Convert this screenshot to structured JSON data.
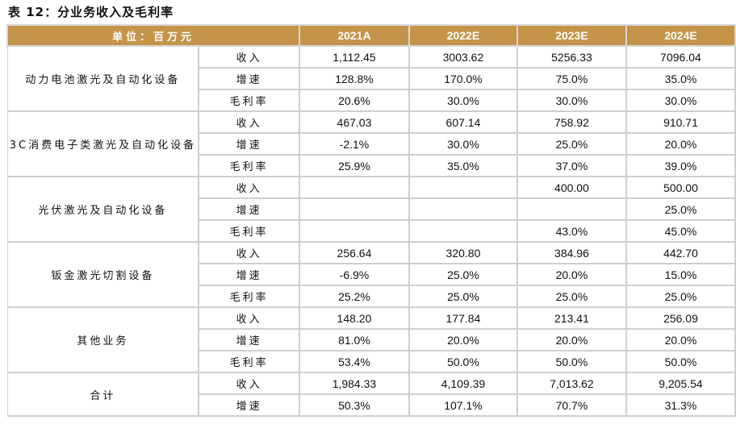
{
  "title": "表 12：分业务收入及毛利率",
  "header": {
    "unit": "单位：百万元",
    "years": [
      "2021A",
      "2022E",
      "2023E",
      "2024E"
    ]
  },
  "groups": [
    {
      "name": "动力电池激光及自动化设备",
      "rows": [
        {
          "metric": "收入",
          "values": [
            "1,112.45",
            "3003.62",
            "5256.33",
            "7096.04"
          ]
        },
        {
          "metric": "增速",
          "values": [
            "128.8%",
            "170.0%",
            "75.0%",
            "35.0%"
          ]
        },
        {
          "metric": "毛利率",
          "values": [
            "20.6%",
            "30.0%",
            "30.0%",
            "30.0%"
          ]
        }
      ]
    },
    {
      "name": "3C消费电子类激光及自动化设备",
      "rows": [
        {
          "metric": "收入",
          "values": [
            "467.03",
            "607.14",
            "758.92",
            "910.71"
          ]
        },
        {
          "metric": "增速",
          "values": [
            "-2.1%",
            "30.0%",
            "25.0%",
            "20.0%"
          ]
        },
        {
          "metric": "毛利率",
          "values": [
            "25.9%",
            "35.0%",
            "37.0%",
            "39.0%"
          ]
        }
      ]
    },
    {
      "name": "光伏激光及自动化设备",
      "rows": [
        {
          "metric": "收入",
          "values": [
            "",
            "",
            "400.00",
            "500.00"
          ]
        },
        {
          "metric": "增速",
          "values": [
            "",
            "",
            "",
            "25.0%"
          ]
        },
        {
          "metric": "毛利率",
          "values": [
            "",
            "",
            "43.0%",
            "45.0%"
          ]
        }
      ]
    },
    {
      "name": "钣金激光切割设备",
      "rows": [
        {
          "metric": "收入",
          "values": [
            "256.64",
            "320.80",
            "384.96",
            "442.70"
          ]
        },
        {
          "metric": "增速",
          "values": [
            "-6.9%",
            "25.0%",
            "20.0%",
            "15.0%"
          ]
        },
        {
          "metric": "毛利率",
          "values": [
            "25.2%",
            "25.0%",
            "25.0%",
            "25.0%"
          ]
        }
      ]
    },
    {
      "name": "其他业务",
      "rows": [
        {
          "metric": "收入",
          "values": [
            "148.20",
            "177.84",
            "213.41",
            "256.09"
          ]
        },
        {
          "metric": "增速",
          "values": [
            "81.0%",
            "20.0%",
            "20.0%",
            "20.0%"
          ]
        },
        {
          "metric": "毛利率",
          "values": [
            "53.4%",
            "50.0%",
            "50.0%",
            "50.0%"
          ]
        }
      ]
    },
    {
      "name": "合计",
      "rows": [
        {
          "metric": "收入",
          "values": [
            "1,984.33",
            "4,109.39",
            "7,013.62",
            "9,205.54"
          ]
        },
        {
          "metric": "增速",
          "values": [
            "50.3%",
            "107.1%",
            "70.7%",
            "31.3%"
          ]
        }
      ]
    }
  ],
  "colors": {
    "header_bg": "#C4944A",
    "border": "#cfcfcf"
  }
}
